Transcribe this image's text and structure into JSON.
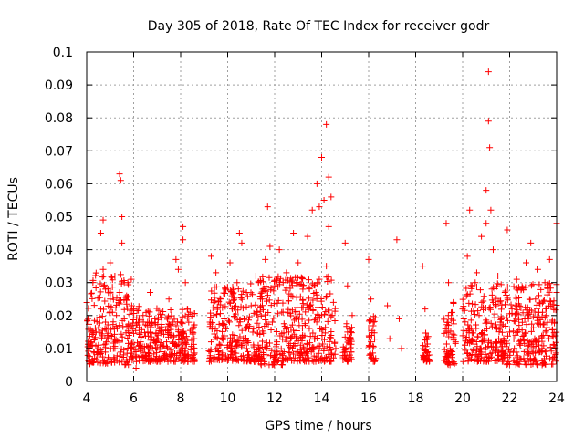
{
  "chart_data": {
    "type": "scatter",
    "title": "Day 305 of 2018, Rate Of TEC Index for receiver godr",
    "xlabel": "GPS time / hours",
    "ylabel": "ROTI / TECUs",
    "xlim": [
      4,
      24
    ],
    "ylim": [
      0,
      0.1
    ],
    "xticks": [
      4,
      6,
      8,
      10,
      12,
      14,
      16,
      18,
      20,
      22,
      24
    ],
    "xtick_labels": [
      "4",
      "6",
      "8",
      "10",
      "12",
      "14",
      "16",
      "18",
      "20",
      "22",
      "24"
    ],
    "yticks": [
      0,
      0.01,
      0.02,
      0.03,
      0.04,
      0.05,
      0.06,
      0.07,
      0.08,
      0.09,
      0.1
    ],
    "ytick_labels": [
      "0",
      "0.01",
      "0.02",
      "0.03",
      "0.04",
      "0.05",
      "0.06",
      "0.07",
      "0.08",
      "0.09",
      "0.1"
    ],
    "grid": true,
    "marker": "+",
    "color": "#ff0000",
    "series": [
      {
        "name": "ROTI",
        "points": [
          [
            4.1,
            0.006
          ],
          [
            4.2,
            0.012
          ],
          [
            4.3,
            0.009
          ],
          [
            4.4,
            0.015
          ],
          [
            4.5,
            0.011
          ],
          [
            4.6,
            0.022
          ],
          [
            4.6,
            0.045
          ],
          [
            4.7,
            0.049
          ],
          [
            4.7,
            0.034
          ],
          [
            4.8,
            0.018
          ],
          [
            4.8,
            0.028
          ],
          [
            4.9,
            0.013
          ],
          [
            5.0,
            0.025
          ],
          [
            5.0,
            0.036
          ],
          [
            5.1,
            0.021
          ],
          [
            5.2,
            0.032
          ],
          [
            5.2,
            0.01
          ],
          [
            5.3,
            0.016
          ],
          [
            5.4,
            0.027
          ],
          [
            5.4,
            0.063
          ],
          [
            5.45,
            0.061
          ],
          [
            5.5,
            0.05
          ],
          [
            5.5,
            0.042
          ],
          [
            5.6,
            0.03
          ],
          [
            5.6,
            0.019
          ],
          [
            5.7,
            0.026
          ],
          [
            5.8,
            0.014
          ],
          [
            5.9,
            0.031
          ],
          [
            6.0,
            0.022
          ],
          [
            6.1,
            0.009
          ],
          [
            6.1,
            0.004
          ],
          [
            6.2,
            0.018
          ],
          [
            6.3,
            0.012
          ],
          [
            6.4,
            0.02
          ],
          [
            6.5,
            0.008
          ],
          [
            6.6,
            0.015
          ],
          [
            6.7,
            0.027
          ],
          [
            6.8,
            0.01
          ],
          [
            6.9,
            0.019
          ],
          [
            7.0,
            0.013
          ],
          [
            7.1,
            0.016
          ],
          [
            7.2,
            0.009
          ],
          [
            7.4,
            0.012
          ],
          [
            7.5,
            0.025
          ],
          [
            7.6,
            0.008
          ],
          [
            7.8,
            0.037
          ],
          [
            7.9,
            0.034
          ],
          [
            8.0,
            0.018
          ],
          [
            8.1,
            0.047
          ],
          [
            8.1,
            0.043
          ],
          [
            8.2,
            0.03
          ],
          [
            8.2,
            0.01
          ],
          [
            8.3,
            0.006
          ],
          [
            8.4,
            0.021
          ],
          [
            8.5,
            0.015
          ],
          [
            9.3,
            0.038
          ],
          [
            9.3,
            0.012
          ],
          [
            9.4,
            0.02
          ],
          [
            9.5,
            0.033
          ],
          [
            9.6,
            0.009
          ],
          [
            9.7,
            0.025
          ],
          [
            9.8,
            0.017
          ],
          [
            9.9,
            0.028
          ],
          [
            10.0,
            0.011
          ],
          [
            10.1,
            0.036
          ],
          [
            10.2,
            0.022
          ],
          [
            10.3,
            0.014
          ],
          [
            10.4,
            0.03
          ],
          [
            10.5,
            0.045
          ],
          [
            10.6,
            0.042
          ],
          [
            10.7,
            0.019
          ],
          [
            10.8,
            0.027
          ],
          [
            10.9,
            0.008
          ],
          [
            11.0,
            0.023
          ],
          [
            11.1,
            0.016
          ],
          [
            11.2,
            0.032
          ],
          [
            11.3,
            0.011
          ],
          [
            11.4,
            0.025
          ],
          [
            11.5,
            0.007
          ],
          [
            11.6,
            0.037
          ],
          [
            11.7,
            0.053
          ],
          [
            11.8,
            0.041
          ],
          [
            11.9,
            0.018
          ],
          [
            12.0,
            0.029
          ],
          [
            12.1,
            0.012
          ],
          [
            12.2,
            0.04
          ],
          [
            12.3,
            0.021
          ],
          [
            12.4,
            0.009
          ],
          [
            12.5,
            0.033
          ],
          [
            12.6,
            0.015
          ],
          [
            12.7,
            0.026
          ],
          [
            12.8,
            0.045
          ],
          [
            12.9,
            0.019
          ],
          [
            13.0,
            0.036
          ],
          [
            13.1,
            0.011
          ],
          [
            13.2,
            0.028
          ],
          [
            13.3,
            0.017
          ],
          [
            13.4,
            0.044
          ],
          [
            13.5,
            0.023
          ],
          [
            13.6,
            0.052
          ],
          [
            13.7,
            0.013
          ],
          [
            13.8,
            0.06
          ],
          [
            13.9,
            0.031
          ],
          [
            13.9,
            0.053
          ],
          [
            14.0,
            0.068
          ],
          [
            14.0,
            0.02
          ],
          [
            14.1,
            0.055
          ],
          [
            14.2,
            0.078
          ],
          [
            14.2,
            0.035
          ],
          [
            14.3,
            0.047
          ],
          [
            14.3,
            0.062
          ],
          [
            14.4,
            0.014
          ],
          [
            14.4,
            0.056
          ],
          [
            14.5,
            0.024
          ],
          [
            14.6,
            0.01
          ],
          [
            15.0,
            0.042
          ],
          [
            15.1,
            0.029
          ],
          [
            15.1,
            0.015
          ],
          [
            15.2,
            0.008
          ],
          [
            15.3,
            0.02
          ],
          [
            16.0,
            0.037
          ],
          [
            16.1,
            0.025
          ],
          [
            16.1,
            0.012
          ],
          [
            16.2,
            0.018
          ],
          [
            16.3,
            0.007
          ],
          [
            16.8,
            0.023
          ],
          [
            16.9,
            0.013
          ],
          [
            17.2,
            0.043
          ],
          [
            17.3,
            0.019
          ],
          [
            17.4,
            0.01
          ],
          [
            18.3,
            0.035
          ],
          [
            18.4,
            0.022
          ],
          [
            18.5,
            0.013
          ],
          [
            18.5,
            0.009
          ],
          [
            19.3,
            0.048
          ],
          [
            19.4,
            0.03
          ],
          [
            19.4,
            0.017
          ],
          [
            19.5,
            0.008
          ],
          [
            19.6,
            0.024
          ],
          [
            19.7,
            0.012
          ],
          [
            20.0,
            0.022
          ],
          [
            20.1,
            0.011
          ],
          [
            20.2,
            0.038
          ],
          [
            20.3,
            0.052
          ],
          [
            20.3,
            0.016
          ],
          [
            20.4,
            0.029
          ],
          [
            20.5,
            0.008
          ],
          [
            20.6,
            0.033
          ],
          [
            20.7,
            0.02
          ],
          [
            20.8,
            0.044
          ],
          [
            20.9,
            0.013
          ],
          [
            21.0,
            0.048
          ],
          [
            21.0,
            0.058
          ],
          [
            21.1,
            0.094
          ],
          [
            21.1,
            0.079
          ],
          [
            21.15,
            0.071
          ],
          [
            21.2,
            0.052
          ],
          [
            21.3,
            0.04
          ],
          [
            21.3,
            0.024
          ],
          [
            21.4,
            0.012
          ],
          [
            21.5,
            0.032
          ],
          [
            21.6,
            0.018
          ],
          [
            21.7,
            0.009
          ],
          [
            21.8,
            0.027
          ],
          [
            21.9,
            0.046
          ],
          [
            22.0,
            0.015
          ],
          [
            22.1,
            0.022
          ],
          [
            22.2,
            0.01
          ],
          [
            22.3,
            0.031
          ],
          [
            22.4,
            0.017
          ],
          [
            22.5,
            0.028
          ],
          [
            22.6,
            0.007
          ],
          [
            22.7,
            0.036
          ],
          [
            22.8,
            0.019
          ],
          [
            22.9,
            0.042
          ],
          [
            23.0,
            0.012
          ],
          [
            23.1,
            0.025
          ],
          [
            23.2,
            0.034
          ],
          [
            23.3,
            0.009
          ],
          [
            23.4,
            0.021
          ],
          [
            23.5,
            0.03
          ],
          [
            23.6,
            0.014
          ],
          [
            23.7,
            0.037
          ],
          [
            23.8,
            0.018
          ],
          [
            23.9,
            0.011
          ],
          [
            24.0,
            0.048
          ],
          [
            24.0,
            0.027
          ]
        ],
        "clusters": [
          {
            "x": [
              4.0,
              5.8
            ],
            "y": [
              0.005,
              0.033
            ]
          },
          {
            "x": [
              5.8,
              7.0
            ],
            "y": [
              0.006,
              0.023
            ]
          },
          {
            "x": [
              7.0,
              8.6
            ],
            "y": [
              0.006,
              0.022
            ]
          },
          {
            "x": [
              9.2,
              11.3
            ],
            "y": [
              0.006,
              0.03
            ]
          },
          {
            "x": [
              11.3,
              12.4
            ],
            "y": [
              0.005,
              0.033
            ]
          },
          {
            "x": [
              12.4,
              14.6
            ],
            "y": [
              0.006,
              0.032
            ]
          },
          {
            "x": [
              14.9,
              15.3
            ],
            "y": [
              0.006,
              0.02
            ]
          },
          {
            "x": [
              16.0,
              16.3
            ],
            "y": [
              0.006,
              0.02
            ]
          },
          {
            "x": [
              18.3,
              18.6
            ],
            "y": [
              0.006,
              0.015
            ]
          },
          {
            "x": [
              19.2,
              19.7
            ],
            "y": [
              0.005,
              0.025
            ]
          },
          {
            "x": [
              20.0,
              21.8
            ],
            "y": [
              0.006,
              0.03
            ]
          },
          {
            "x": [
              21.8,
              24.0
            ],
            "y": [
              0.005,
              0.03
            ]
          }
        ]
      }
    ]
  }
}
